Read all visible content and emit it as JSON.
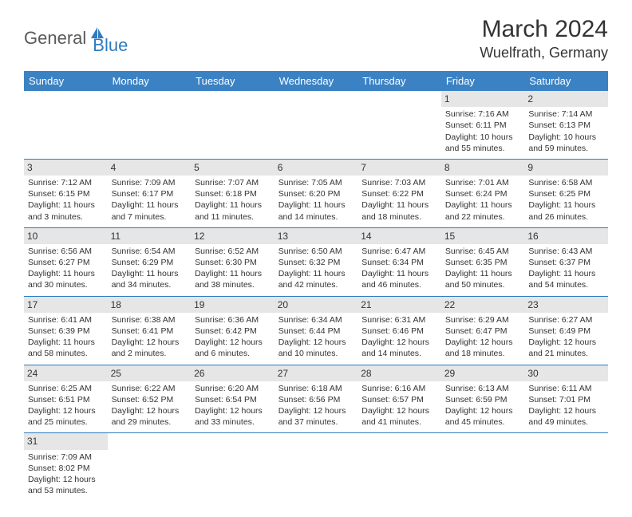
{
  "logo": {
    "text_general": "General",
    "text_blue": "Blue",
    "icon_color": "#2f7bbf"
  },
  "title": {
    "month": "March 2024",
    "location": "Wuelfrath, Germany"
  },
  "colors": {
    "header_bg": "#3b82c4",
    "header_text": "#ffffff",
    "day_number_bg": "#e6e6e6",
    "border": "#2f7bbf",
    "text": "#333333"
  },
  "weekdays": [
    "Sunday",
    "Monday",
    "Tuesday",
    "Wednesday",
    "Thursday",
    "Friday",
    "Saturday"
  ],
  "weeks": [
    [
      null,
      null,
      null,
      null,
      null,
      {
        "day": "1",
        "sunrise": "Sunrise: 7:16 AM",
        "sunset": "Sunset: 6:11 PM",
        "daylight": "Daylight: 10 hours and 55 minutes."
      },
      {
        "day": "2",
        "sunrise": "Sunrise: 7:14 AM",
        "sunset": "Sunset: 6:13 PM",
        "daylight": "Daylight: 10 hours and 59 minutes."
      }
    ],
    [
      {
        "day": "3",
        "sunrise": "Sunrise: 7:12 AM",
        "sunset": "Sunset: 6:15 PM",
        "daylight": "Daylight: 11 hours and 3 minutes."
      },
      {
        "day": "4",
        "sunrise": "Sunrise: 7:09 AM",
        "sunset": "Sunset: 6:17 PM",
        "daylight": "Daylight: 11 hours and 7 minutes."
      },
      {
        "day": "5",
        "sunrise": "Sunrise: 7:07 AM",
        "sunset": "Sunset: 6:18 PM",
        "daylight": "Daylight: 11 hours and 11 minutes."
      },
      {
        "day": "6",
        "sunrise": "Sunrise: 7:05 AM",
        "sunset": "Sunset: 6:20 PM",
        "daylight": "Daylight: 11 hours and 14 minutes."
      },
      {
        "day": "7",
        "sunrise": "Sunrise: 7:03 AM",
        "sunset": "Sunset: 6:22 PM",
        "daylight": "Daylight: 11 hours and 18 minutes."
      },
      {
        "day": "8",
        "sunrise": "Sunrise: 7:01 AM",
        "sunset": "Sunset: 6:24 PM",
        "daylight": "Daylight: 11 hours and 22 minutes."
      },
      {
        "day": "9",
        "sunrise": "Sunrise: 6:58 AM",
        "sunset": "Sunset: 6:25 PM",
        "daylight": "Daylight: 11 hours and 26 minutes."
      }
    ],
    [
      {
        "day": "10",
        "sunrise": "Sunrise: 6:56 AM",
        "sunset": "Sunset: 6:27 PM",
        "daylight": "Daylight: 11 hours and 30 minutes."
      },
      {
        "day": "11",
        "sunrise": "Sunrise: 6:54 AM",
        "sunset": "Sunset: 6:29 PM",
        "daylight": "Daylight: 11 hours and 34 minutes."
      },
      {
        "day": "12",
        "sunrise": "Sunrise: 6:52 AM",
        "sunset": "Sunset: 6:30 PM",
        "daylight": "Daylight: 11 hours and 38 minutes."
      },
      {
        "day": "13",
        "sunrise": "Sunrise: 6:50 AM",
        "sunset": "Sunset: 6:32 PM",
        "daylight": "Daylight: 11 hours and 42 minutes."
      },
      {
        "day": "14",
        "sunrise": "Sunrise: 6:47 AM",
        "sunset": "Sunset: 6:34 PM",
        "daylight": "Daylight: 11 hours and 46 minutes."
      },
      {
        "day": "15",
        "sunrise": "Sunrise: 6:45 AM",
        "sunset": "Sunset: 6:35 PM",
        "daylight": "Daylight: 11 hours and 50 minutes."
      },
      {
        "day": "16",
        "sunrise": "Sunrise: 6:43 AM",
        "sunset": "Sunset: 6:37 PM",
        "daylight": "Daylight: 11 hours and 54 minutes."
      }
    ],
    [
      {
        "day": "17",
        "sunrise": "Sunrise: 6:41 AM",
        "sunset": "Sunset: 6:39 PM",
        "daylight": "Daylight: 11 hours and 58 minutes."
      },
      {
        "day": "18",
        "sunrise": "Sunrise: 6:38 AM",
        "sunset": "Sunset: 6:41 PM",
        "daylight": "Daylight: 12 hours and 2 minutes."
      },
      {
        "day": "19",
        "sunrise": "Sunrise: 6:36 AM",
        "sunset": "Sunset: 6:42 PM",
        "daylight": "Daylight: 12 hours and 6 minutes."
      },
      {
        "day": "20",
        "sunrise": "Sunrise: 6:34 AM",
        "sunset": "Sunset: 6:44 PM",
        "daylight": "Daylight: 12 hours and 10 minutes."
      },
      {
        "day": "21",
        "sunrise": "Sunrise: 6:31 AM",
        "sunset": "Sunset: 6:46 PM",
        "daylight": "Daylight: 12 hours and 14 minutes."
      },
      {
        "day": "22",
        "sunrise": "Sunrise: 6:29 AM",
        "sunset": "Sunset: 6:47 PM",
        "daylight": "Daylight: 12 hours and 18 minutes."
      },
      {
        "day": "23",
        "sunrise": "Sunrise: 6:27 AM",
        "sunset": "Sunset: 6:49 PM",
        "daylight": "Daylight: 12 hours and 21 minutes."
      }
    ],
    [
      {
        "day": "24",
        "sunrise": "Sunrise: 6:25 AM",
        "sunset": "Sunset: 6:51 PM",
        "daylight": "Daylight: 12 hours and 25 minutes."
      },
      {
        "day": "25",
        "sunrise": "Sunrise: 6:22 AM",
        "sunset": "Sunset: 6:52 PM",
        "daylight": "Daylight: 12 hours and 29 minutes."
      },
      {
        "day": "26",
        "sunrise": "Sunrise: 6:20 AM",
        "sunset": "Sunset: 6:54 PM",
        "daylight": "Daylight: 12 hours and 33 minutes."
      },
      {
        "day": "27",
        "sunrise": "Sunrise: 6:18 AM",
        "sunset": "Sunset: 6:56 PM",
        "daylight": "Daylight: 12 hours and 37 minutes."
      },
      {
        "day": "28",
        "sunrise": "Sunrise: 6:16 AM",
        "sunset": "Sunset: 6:57 PM",
        "daylight": "Daylight: 12 hours and 41 minutes."
      },
      {
        "day": "29",
        "sunrise": "Sunrise: 6:13 AM",
        "sunset": "Sunset: 6:59 PM",
        "daylight": "Daylight: 12 hours and 45 minutes."
      },
      {
        "day": "30",
        "sunrise": "Sunrise: 6:11 AM",
        "sunset": "Sunset: 7:01 PM",
        "daylight": "Daylight: 12 hours and 49 minutes."
      }
    ],
    [
      {
        "day": "31",
        "sunrise": "Sunrise: 7:09 AM",
        "sunset": "Sunset: 8:02 PM",
        "daylight": "Daylight: 12 hours and 53 minutes."
      },
      null,
      null,
      null,
      null,
      null,
      null
    ]
  ]
}
